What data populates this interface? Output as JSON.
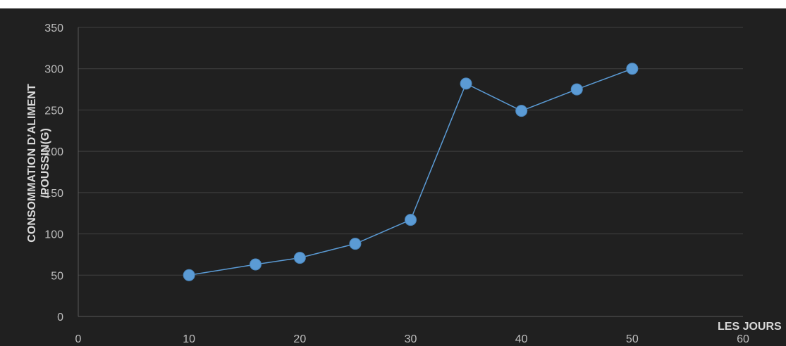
{
  "chart_data": {
    "type": "scatter",
    "title": "",
    "xlabel": "LES JOURS",
    "ylabel": [
      "CONSOMMATION D’ALIMENT",
      "/POUSSIN(G)"
    ],
    "xlim": [
      0,
      60
    ],
    "ylim": [
      0,
      350
    ],
    "xticks": [
      0,
      10,
      20,
      30,
      40,
      50,
      60
    ],
    "yticks": [
      0,
      50,
      100,
      150,
      200,
      250,
      300,
      350
    ],
    "grid": "horizontal",
    "legend": "none",
    "series": [
      {
        "x": [
          10,
          16,
          20,
          25,
          30,
          35,
          40,
          45,
          50
        ],
        "y": [
          50,
          63,
          71,
          88,
          117,
          282,
          249,
          275,
          300
        ],
        "color": "#5b9bd5",
        "line": true,
        "marker": "circle"
      }
    ]
  },
  "colors": {
    "background": "#202020",
    "gridline": "#404040",
    "axis": "#595959",
    "tick_label": "#bfbfbf",
    "axis_title": "#d9d9d9",
    "series": "#5b9bd5"
  }
}
